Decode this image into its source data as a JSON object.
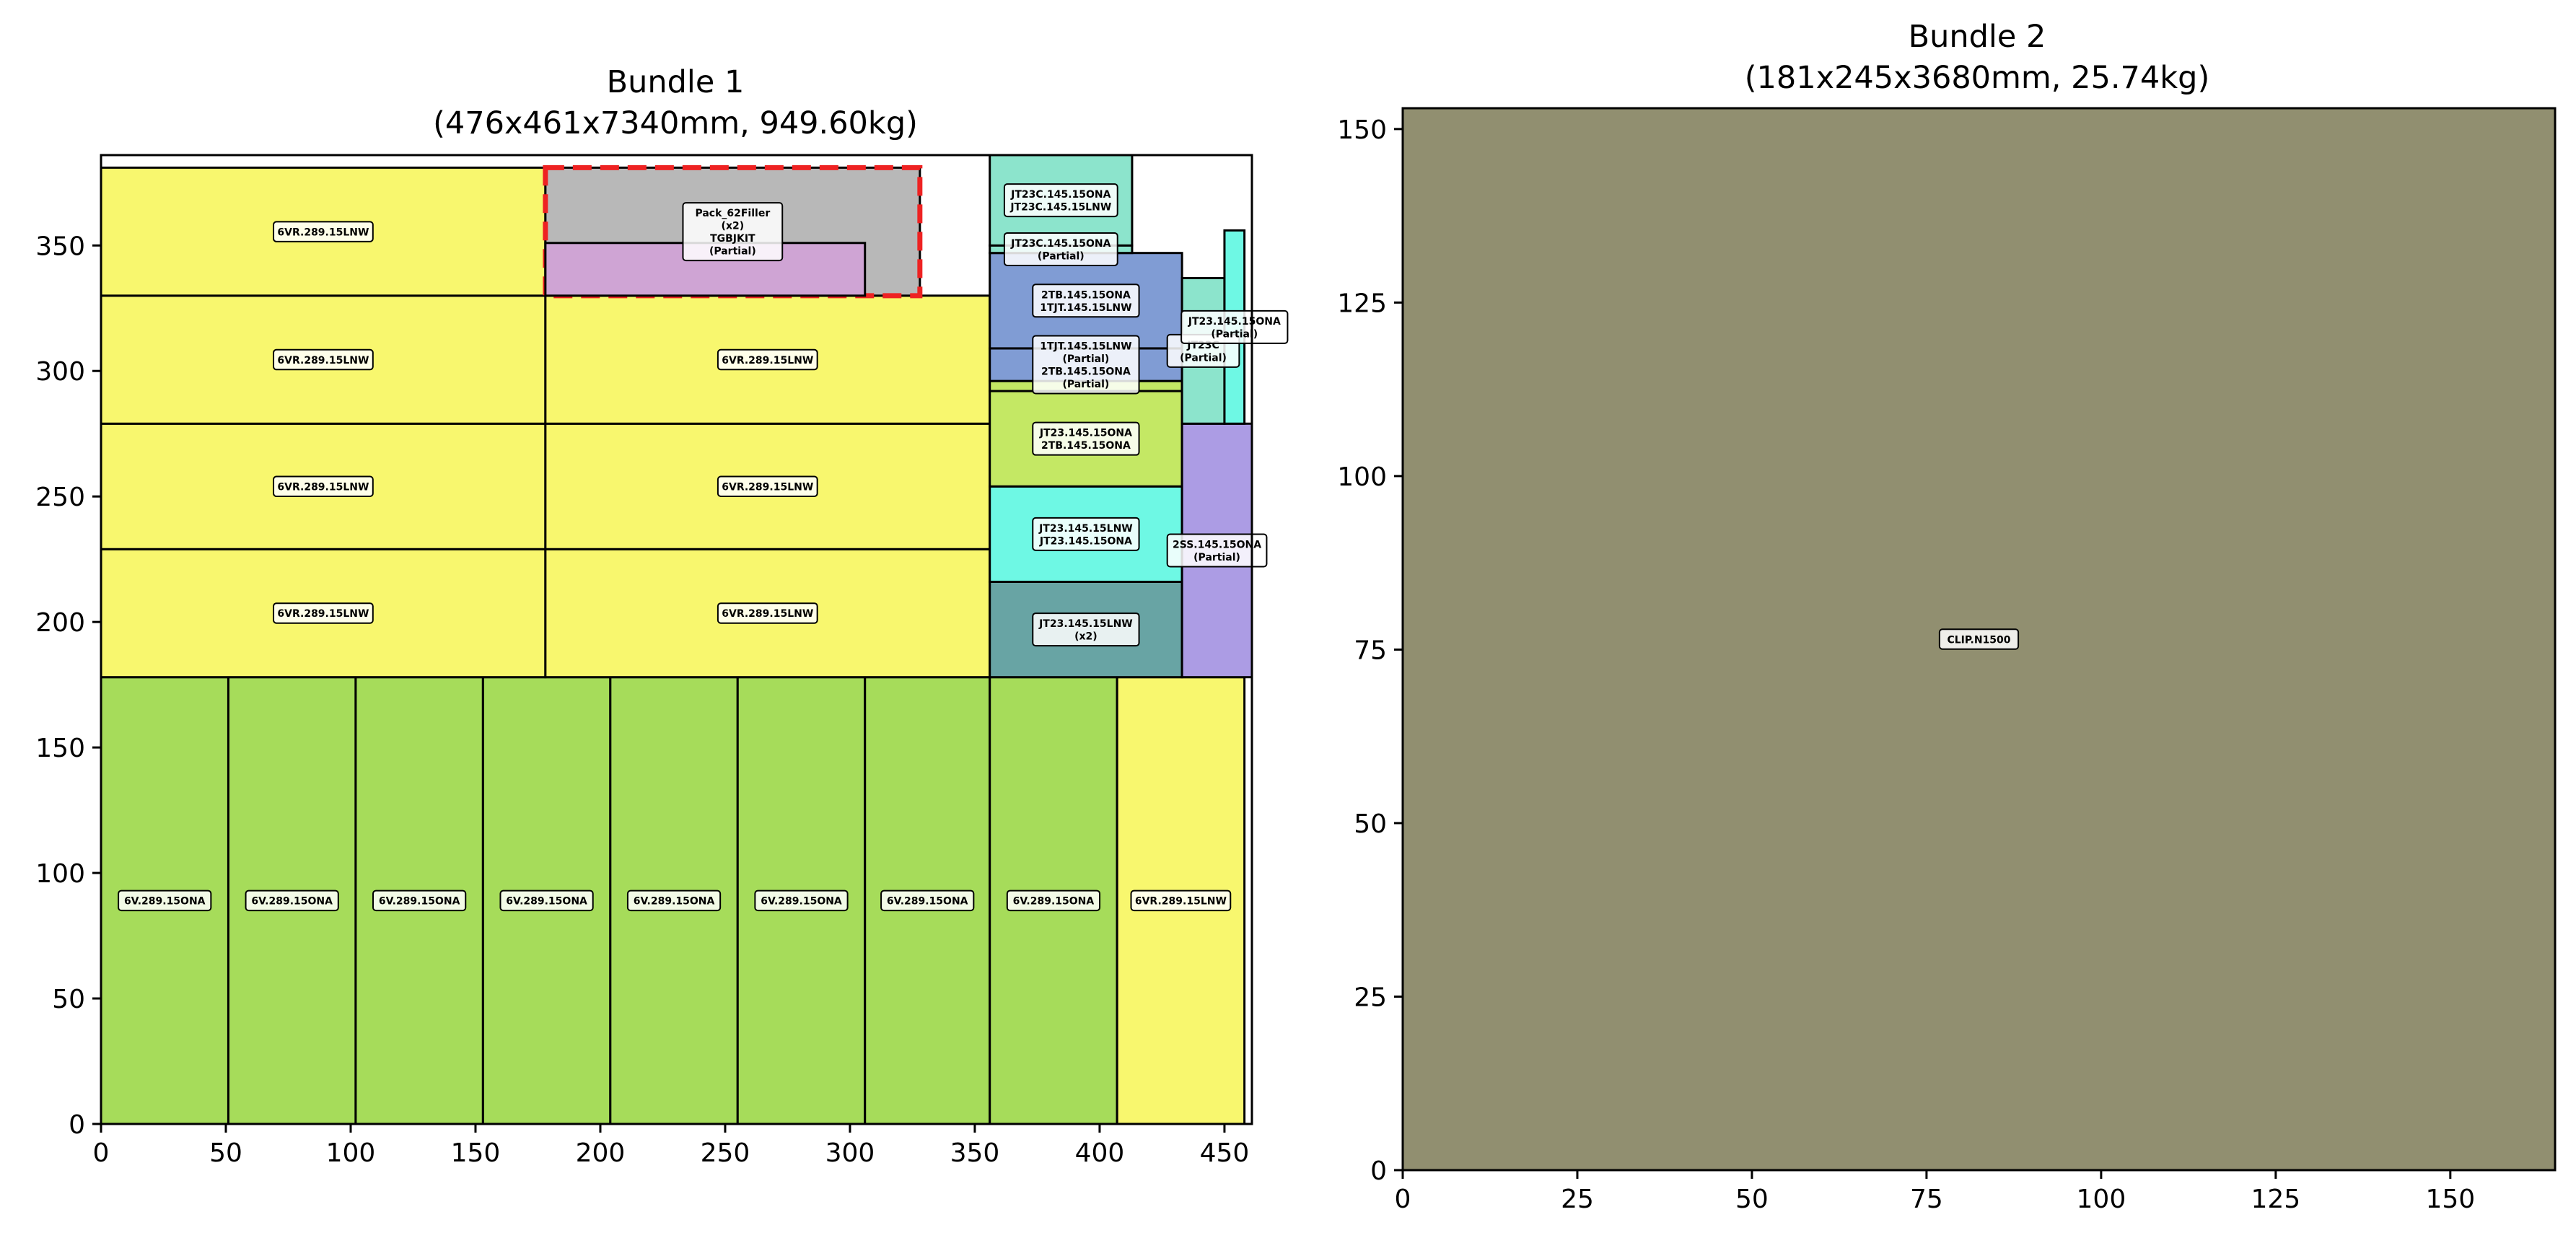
{
  "chart_data": [
    {
      "type": "packing",
      "title": "Bundle 1",
      "subtitle": "(476x461x7340mm, 949.60kg)",
      "xlim": [
        0,
        461
      ],
      "ylim": [
        0,
        386
      ],
      "x_ticks": [
        0,
        50,
        100,
        150,
        200,
        250,
        300,
        350,
        400,
        450
      ],
      "y_ticks": [
        0,
        50,
        100,
        150,
        200,
        250,
        300,
        350
      ],
      "grid": false,
      "items": [
        {
          "x": 0,
          "y": 0,
          "w": 51,
          "h": 178,
          "color": "#a6dc5a",
          "label": "6V.289.15ONA"
        },
        {
          "x": 51,
          "y": 0,
          "w": 51,
          "h": 178,
          "color": "#a6dc5a",
          "label": "6V.289.15ONA"
        },
        {
          "x": 102,
          "y": 0,
          "w": 51,
          "h": 178,
          "color": "#a6dc5a",
          "label": "6V.289.15ONA"
        },
        {
          "x": 153,
          "y": 0,
          "w": 51,
          "h": 178,
          "color": "#a6dc5a",
          "label": "6V.289.15ONA"
        },
        {
          "x": 204,
          "y": 0,
          "w": 51,
          "h": 178,
          "color": "#a6dc5a",
          "label": "6V.289.15ONA"
        },
        {
          "x": 255,
          "y": 0,
          "w": 51,
          "h": 178,
          "color": "#a6dc5a",
          "label": "6V.289.15ONA"
        },
        {
          "x": 306,
          "y": 0,
          "w": 50,
          "h": 178,
          "color": "#a6dc5a",
          "label": "6V.289.15ONA"
        },
        {
          "x": 356,
          "y": 0,
          "w": 51,
          "h": 178,
          "color": "#a6dc5a",
          "label": "6V.289.15ONA"
        },
        {
          "x": 407,
          "y": 0,
          "w": 51,
          "h": 178,
          "color": "#f8f76e",
          "label": "6VR.289.15LNW"
        },
        {
          "x": 0,
          "y": 178,
          "w": 178,
          "h": 51,
          "color": "#f8f76e",
          "label": "6VR.289.15LNW"
        },
        {
          "x": 0,
          "y": 229,
          "w": 178,
          "h": 50,
          "color": "#f8f76e",
          "label": "6VR.289.15LNW"
        },
        {
          "x": 0,
          "y": 279,
          "w": 178,
          "h": 51,
          "color": "#f8f76e",
          "label": "6VR.289.15LNW"
        },
        {
          "x": 0,
          "y": 330,
          "w": 178,
          "h": 51,
          "color": "#f8f76e",
          "label": "6VR.289.15LNW"
        },
        {
          "x": 178,
          "y": 178,
          "w": 178,
          "h": 51,
          "color": "#f8f76e",
          "label": "6VR.289.15LNW"
        },
        {
          "x": 178,
          "y": 229,
          "w": 178,
          "h": 50,
          "color": "#f8f76e",
          "label": "6VR.289.15LNW"
        },
        {
          "x": 178,
          "y": 279,
          "w": 178,
          "h": 51,
          "color": "#f8f76e",
          "label": "6VR.289.15LNW"
        },
        {
          "x": 178,
          "y": 330,
          "w": 150,
          "h": 51,
          "color": "#b8b8b8",
          "dashed": true,
          "label": "Pack_62Filler\n(x2)\nTGBJKIT\n(Partial)"
        },
        {
          "x": 178,
          "y": 330,
          "w": 128,
          "h": 21,
          "color": "#cfa4d4",
          "label": ""
        },
        {
          "x": 356,
          "y": 178,
          "w": 77,
          "h": 38,
          "color": "#68a4a4",
          "label": "JT23.145.15LNW\n(x2)"
        },
        {
          "x": 356,
          "y": 216,
          "w": 77,
          "h": 38,
          "color": "#6ef8e4",
          "label": "JT23.145.15LNW\nJT23.145.15ONA"
        },
        {
          "x": 356,
          "y": 254,
          "w": 77,
          "h": 38,
          "color": "#c4e864",
          "label": "JT23.145.15ONA\n2TB.145.15ONA"
        },
        {
          "x": 356,
          "y": 292,
          "w": 77,
          "h": 4,
          "color": "#c4e864",
          "label": ""
        },
        {
          "x": 356,
          "y": 296,
          "w": 77,
          "h": 13,
          "color": "#809cd4",
          "label": "1TJT.145.15LNW\n(Partial)\n2TB.145.15ONA\n(Partial)"
        },
        {
          "x": 356,
          "y": 309,
          "w": 77,
          "h": 38,
          "color": "#809cd4",
          "label": "2TB.145.15ONA\n1TJT.145.15LNW"
        },
        {
          "x": 356,
          "y": 347,
          "w": 57,
          "h": 3,
          "color": "#8ce4cc",
          "label": "JT23C.145.15ONA\n(Partial)"
        },
        {
          "x": 356,
          "y": 350,
          "w": 57,
          "h": 36,
          "color": "#8ce4cc",
          "label": "JT23C.145.15ONA\nJT23C.145.15LNW"
        },
        {
          "x": 433,
          "y": 178,
          "w": 28,
          "h": 101,
          "color": "#ac9ce4",
          "label": "2SS.145.15ONA\n(Partial)"
        },
        {
          "x": 433,
          "y": 279,
          "w": 17,
          "h": 58,
          "color": "#8ce4cc",
          "label": "JT23C\n(Partial)"
        },
        {
          "x": 450,
          "y": 279,
          "w": 8,
          "h": 77,
          "color": "#6ef8e4",
          "label": "JT23.145.15ONA\n(Partial)"
        }
      ]
    },
    {
      "type": "packing",
      "title": "Bundle 2",
      "subtitle": "(181x245x3680mm, 25.74kg)",
      "xlim": [
        0,
        165
      ],
      "ylim": [
        0,
        153
      ],
      "x_ticks": [
        0,
        25,
        50,
        75,
        100,
        125,
        150
      ],
      "y_ticks": [
        0,
        25,
        50,
        75,
        100,
        125,
        150
      ],
      "grid": false,
      "items": [
        {
          "x": 0,
          "y": 0,
          "w": 165,
          "h": 153,
          "color": "#918f70",
          "label": "CLIP.N1500"
        }
      ]
    }
  ]
}
